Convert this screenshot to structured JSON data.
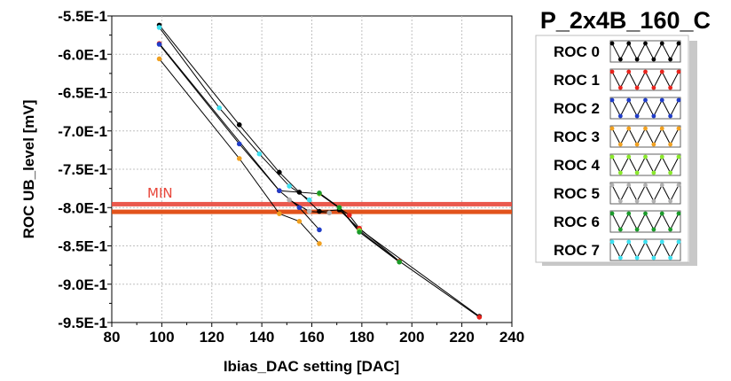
{
  "chart_data": {
    "type": "line",
    "title": "P_2x4B_160_C",
    "xlabel": "Ibias_DAC setting [DAC]",
    "ylabel": "ROC UB_level [mV]",
    "xlim": [
      80,
      240
    ],
    "ylim": [
      -0.95,
      -0.55
    ],
    "x_ticks": [
      80,
      100,
      120,
      140,
      160,
      180,
      200,
      220,
      240
    ],
    "x_tick_labels": [
      "80",
      "100",
      "120",
      "140",
      "160",
      "180",
      "200",
      "220",
      "240"
    ],
    "y_ticks": [
      -0.55,
      -0.6,
      -0.65,
      -0.7,
      -0.75,
      -0.8,
      -0.85,
      -0.9,
      -0.95
    ],
    "y_tick_labels": [
      "-5.5E-1",
      "-6.0E-1",
      "-6.5E-1",
      "-7.0E-1",
      "-7.5E-1",
      "-8.0E-1",
      "-8.5E-1",
      "-9.0E-1",
      "-9.5E-1"
    ],
    "grid": true,
    "legend_position": "right",
    "min_line": {
      "label": "MIN",
      "band": [
        -0.805,
        -0.795
      ],
      "color": "#e8463a"
    },
    "series": [
      {
        "name": "ROC 0",
        "color": "#000000",
        "x": [
          99,
          131,
          147,
          155,
          163,
          171,
          179,
          227
        ],
        "y": [
          -0.562,
          -0.692,
          -0.754,
          -0.78,
          -0.805,
          -0.803,
          -0.828,
          -0.942
        ]
      },
      {
        "name": "ROC 1",
        "color": "#e8231c",
        "x": [
          99,
          147,
          163,
          175,
          179,
          195,
          227
        ],
        "y": [
          -0.586,
          -0.778,
          -0.782,
          -0.81,
          -0.827,
          -0.87,
          -0.943
        ]
      },
      {
        "name": "ROC 2",
        "color": "#1f3cc8",
        "x": [
          99,
          131,
          147,
          155,
          163
        ],
        "y": [
          -0.587,
          -0.717,
          -0.778,
          -0.8,
          -0.829
        ]
      },
      {
        "name": "ROC 3",
        "color": "#f0a020",
        "x": [
          99,
          131,
          147,
          155,
          163
        ],
        "y": [
          -0.606,
          -0.736,
          -0.808,
          -0.818,
          -0.847
        ]
      },
      {
        "name": "ROC 4",
        "color": "#8ae82c",
        "x": [
          163,
          171,
          179,
          195
        ],
        "y": [
          -0.782,
          -0.8,
          -0.83,
          -0.871
        ]
      },
      {
        "name": "ROC 5",
        "color": "#b0b0b0",
        "x": [
          151,
          159,
          167
        ],
        "y": [
          -0.79,
          -0.805,
          -0.807
        ]
      },
      {
        "name": "ROC 6",
        "color": "#1a9a2a",
        "x": [
          163,
          171,
          179,
          195
        ],
        "y": [
          -0.781,
          -0.8,
          -0.832,
          -0.871
        ]
      },
      {
        "name": "ROC 7",
        "color": "#3ee0f0",
        "x": [
          99,
          123,
          139,
          151,
          159
        ],
        "y": [
          -0.565,
          -0.67,
          -0.73,
          -0.772,
          -0.79
        ]
      }
    ]
  }
}
